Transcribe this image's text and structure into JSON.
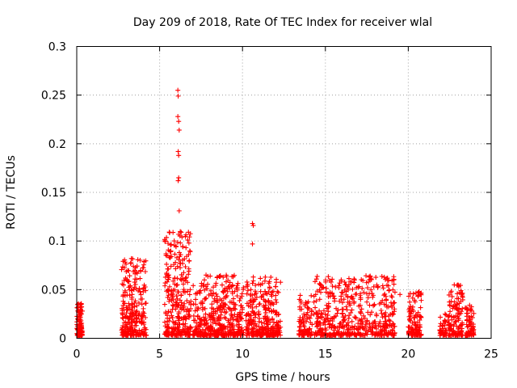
{
  "chart_data": {
    "type": "scatter",
    "title": "Day 209 of 2018, Rate Of TEC Index for receiver wlal",
    "xlabel": "GPS time / hours",
    "ylabel": "ROTI / TECUs",
    "xlim": [
      0,
      25
    ],
    "ylim": [
      0,
      0.3
    ],
    "x_ticks": [
      0,
      5,
      10,
      15,
      20,
      25
    ],
    "y_ticks": [
      0,
      0.05,
      0.1,
      0.15,
      0.2,
      0.25,
      0.3
    ],
    "x_tick_labels": [
      "0",
      "5",
      "10",
      "15",
      "20",
      "25"
    ],
    "y_tick_labels": [
      "0",
      "0.05",
      "0.1",
      "0.15",
      "0.2",
      "0.25",
      "0.3"
    ],
    "grid": true,
    "marker": "+",
    "color": "#ff0000",
    "series": [
      {
        "name": "ROTI",
        "clusters": [
          {
            "x_range": [
              0.0,
              0.35
            ],
            "y_max": 0.037,
            "n": 110
          },
          {
            "x_range": [
              2.7,
              4.2
            ],
            "y_max": 0.082,
            "n": 260
          },
          {
            "x_range": [
              5.3,
              6.9
            ],
            "y_max": 0.11,
            "n": 300
          },
          {
            "x_range": [
              7.0,
              10.1
            ],
            "y_max": 0.065,
            "n": 420
          },
          {
            "x_range": [
              10.2,
              12.3
            ],
            "y_max": 0.063,
            "n": 300
          },
          {
            "x_range": [
              13.4,
              14.2
            ],
            "y_max": 0.045,
            "n": 90
          },
          {
            "x_range": [
              14.3,
              19.2
            ],
            "y_max": 0.065,
            "n": 520
          },
          {
            "x_range": [
              20.0,
              20.8
            ],
            "y_max": 0.048,
            "n": 110
          },
          {
            "x_range": [
              21.9,
              22.3
            ],
            "y_max": 0.025,
            "n": 45
          },
          {
            "x_range": [
              22.4,
              23.3
            ],
            "y_max": 0.055,
            "n": 120
          },
          {
            "x_range": [
              23.4,
              24.0
            ],
            "y_max": 0.035,
            "n": 70
          }
        ],
        "highlights": [
          {
            "x": 6.1,
            "y": 0.255
          },
          {
            "x": 6.12,
            "y": 0.249
          },
          {
            "x": 6.1,
            "y": 0.228
          },
          {
            "x": 6.15,
            "y": 0.223
          },
          {
            "x": 6.18,
            "y": 0.214
          },
          {
            "x": 6.12,
            "y": 0.192
          },
          {
            "x": 6.15,
            "y": 0.188
          },
          {
            "x": 6.15,
            "y": 0.165
          },
          {
            "x": 6.12,
            "y": 0.162
          },
          {
            "x": 6.18,
            "y": 0.131
          },
          {
            "x": 6.3,
            "y": 0.109
          },
          {
            "x": 6.35,
            "y": 0.104
          },
          {
            "x": 6.25,
            "y": 0.098
          },
          {
            "x": 6.4,
            "y": 0.094
          },
          {
            "x": 10.6,
            "y": 0.118
          },
          {
            "x": 10.65,
            "y": 0.116
          },
          {
            "x": 10.6,
            "y": 0.097
          },
          {
            "x": 10.65,
            "y": 0.063
          },
          {
            "x": 10.65,
            "y": 0.059
          },
          {
            "x": 3.3,
            "y": 0.082
          },
          {
            "x": 3.25,
            "y": 0.077
          },
          {
            "x": 3.85,
            "y": 0.069
          },
          {
            "x": 16.5,
            "y": 0.058
          },
          {
            "x": 17.7,
            "y": 0.064
          },
          {
            "x": 19.5,
            "y": 0.045
          },
          {
            "x": 20.6,
            "y": 0.047
          },
          {
            "x": 23.0,
            "y": 0.055
          },
          {
            "x": 23.05,
            "y": 0.053
          },
          {
            "x": 23.7,
            "y": 0.034
          },
          {
            "x": 8.9,
            "y": 0.049
          },
          {
            "x": 9.1,
            "y": 0.048
          },
          {
            "x": 12.1,
            "y": 0.048
          },
          {
            "x": 12.0,
            "y": 0.044
          },
          {
            "x": 7.7,
            "y": 0.06
          },
          {
            "x": 7.8,
            "y": 0.065
          },
          {
            "x": 5.5,
            "y": 0.064
          },
          {
            "x": 5.45,
            "y": 0.058
          }
        ]
      }
    ]
  }
}
